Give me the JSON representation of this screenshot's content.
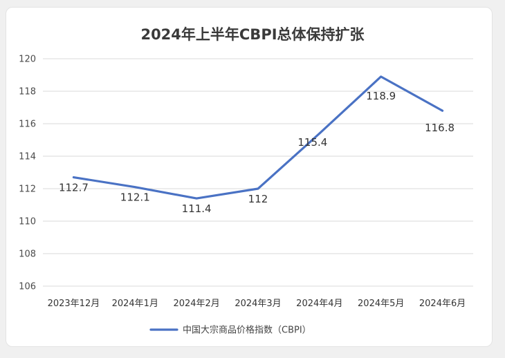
{
  "chart_data": {
    "type": "line",
    "title": "2024年上半年CBPI总体保持扩张",
    "categories": [
      "2023年12月",
      "2024年1月",
      "2024年2月",
      "2024年3月",
      "2024年4月",
      "2024年5月",
      "2024年6月"
    ],
    "series": [
      {
        "name": "中国大宗商品价格指数（CBPI）",
        "values": [
          112.7,
          112.1,
          111.4,
          112,
          115.4,
          118.9,
          116.8
        ],
        "data_labels": [
          "112.7",
          "112.1",
          "111.4",
          "112",
          "115.4",
          "118.9",
          "116.8"
        ],
        "color": "#4a72c4"
      }
    ],
    "ylim": [
      106,
      120
    ],
    "yticks": [
      106,
      108,
      110,
      112,
      114,
      116,
      118,
      120
    ],
    "ytick_labels": [
      "106",
      "108",
      "110",
      "112",
      "114",
      "116",
      "118",
      "120"
    ],
    "grid": true,
    "legend": "bottom",
    "xlabel": "",
    "ylabel": ""
  }
}
